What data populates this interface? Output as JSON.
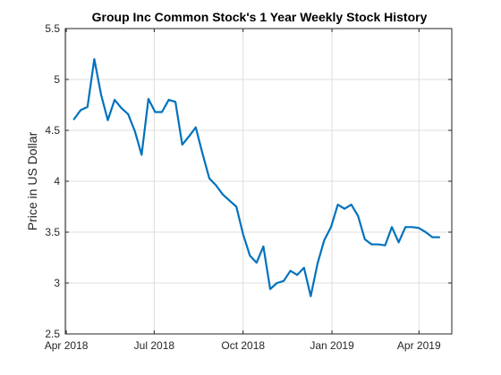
{
  "chart_data": {
    "type": "line",
    "title": "Group Inc Common Stock's 1 Year Weekly Stock History",
    "xlabel": "",
    "ylabel": "Price in US Dollar",
    "ylim": [
      2.5,
      5.5
    ],
    "xlim": [
      "2018-03-31",
      "2019-05-05"
    ],
    "grid": true,
    "line_color": "#0072BD",
    "y_ticks": [
      2.5,
      3,
      3.5,
      4,
      4.5,
      5,
      5.5
    ],
    "y_tick_labels": [
      "2.5",
      "3",
      "3.5",
      "4",
      "4.5",
      "5",
      "5.5"
    ],
    "x_ticks": [
      "2018-04-01",
      "2018-07-01",
      "2018-10-01",
      "2019-01-01",
      "2019-04-01"
    ],
    "x_tick_labels": [
      "Apr 2018",
      "Jul 2018",
      "Oct 2018",
      "Jan 2019",
      "Apr 2019"
    ],
    "series": [
      {
        "x": [
          "2018-04-09",
          "2018-04-16",
          "2018-04-23",
          "2018-04-30",
          "2018-05-07",
          "2018-05-14",
          "2018-05-21",
          "2018-05-28",
          "2018-06-04",
          "2018-06-11",
          "2018-06-18",
          "2018-06-25",
          "2018-07-02",
          "2018-07-09",
          "2018-07-16",
          "2018-07-23",
          "2018-07-30",
          "2018-08-06",
          "2018-08-13",
          "2018-08-20",
          "2018-08-27",
          "2018-09-03",
          "2018-09-10",
          "2018-09-17",
          "2018-09-24",
          "2018-10-01",
          "2018-10-08",
          "2018-10-15",
          "2018-10-22",
          "2018-10-29",
          "2018-11-05",
          "2018-11-12",
          "2018-11-19",
          "2018-11-26",
          "2018-12-03",
          "2018-12-10",
          "2018-12-17",
          "2018-12-24",
          "2018-12-31",
          "2019-01-07",
          "2019-01-14",
          "2019-01-21",
          "2019-01-28",
          "2019-02-04",
          "2019-02-11",
          "2019-02-18",
          "2019-02-25",
          "2019-03-04",
          "2019-03-11",
          "2019-03-18",
          "2019-03-25",
          "2019-04-01",
          "2019-04-08",
          "2019-04-15",
          "2019-04-22"
        ],
        "values": [
          4.61,
          4.7,
          4.73,
          5.2,
          4.85,
          4.6,
          4.8,
          4.72,
          4.66,
          4.49,
          4.26,
          4.81,
          4.68,
          4.68,
          4.8,
          4.78,
          4.36,
          4.44,
          4.53,
          4.27,
          4.03,
          3.96,
          3.87,
          3.81,
          3.75,
          3.48,
          3.27,
          3.2,
          3.36,
          2.94,
          3.0,
          3.02,
          3.12,
          3.08,
          3.15,
          2.87,
          3.19,
          3.42,
          3.55,
          3.77,
          3.73,
          3.77,
          3.66,
          3.43,
          3.38,
          3.38,
          3.37,
          3.55,
          3.4,
          3.55,
          3.55,
          3.54,
          3.5,
          3.45,
          3.45
        ]
      }
    ]
  }
}
